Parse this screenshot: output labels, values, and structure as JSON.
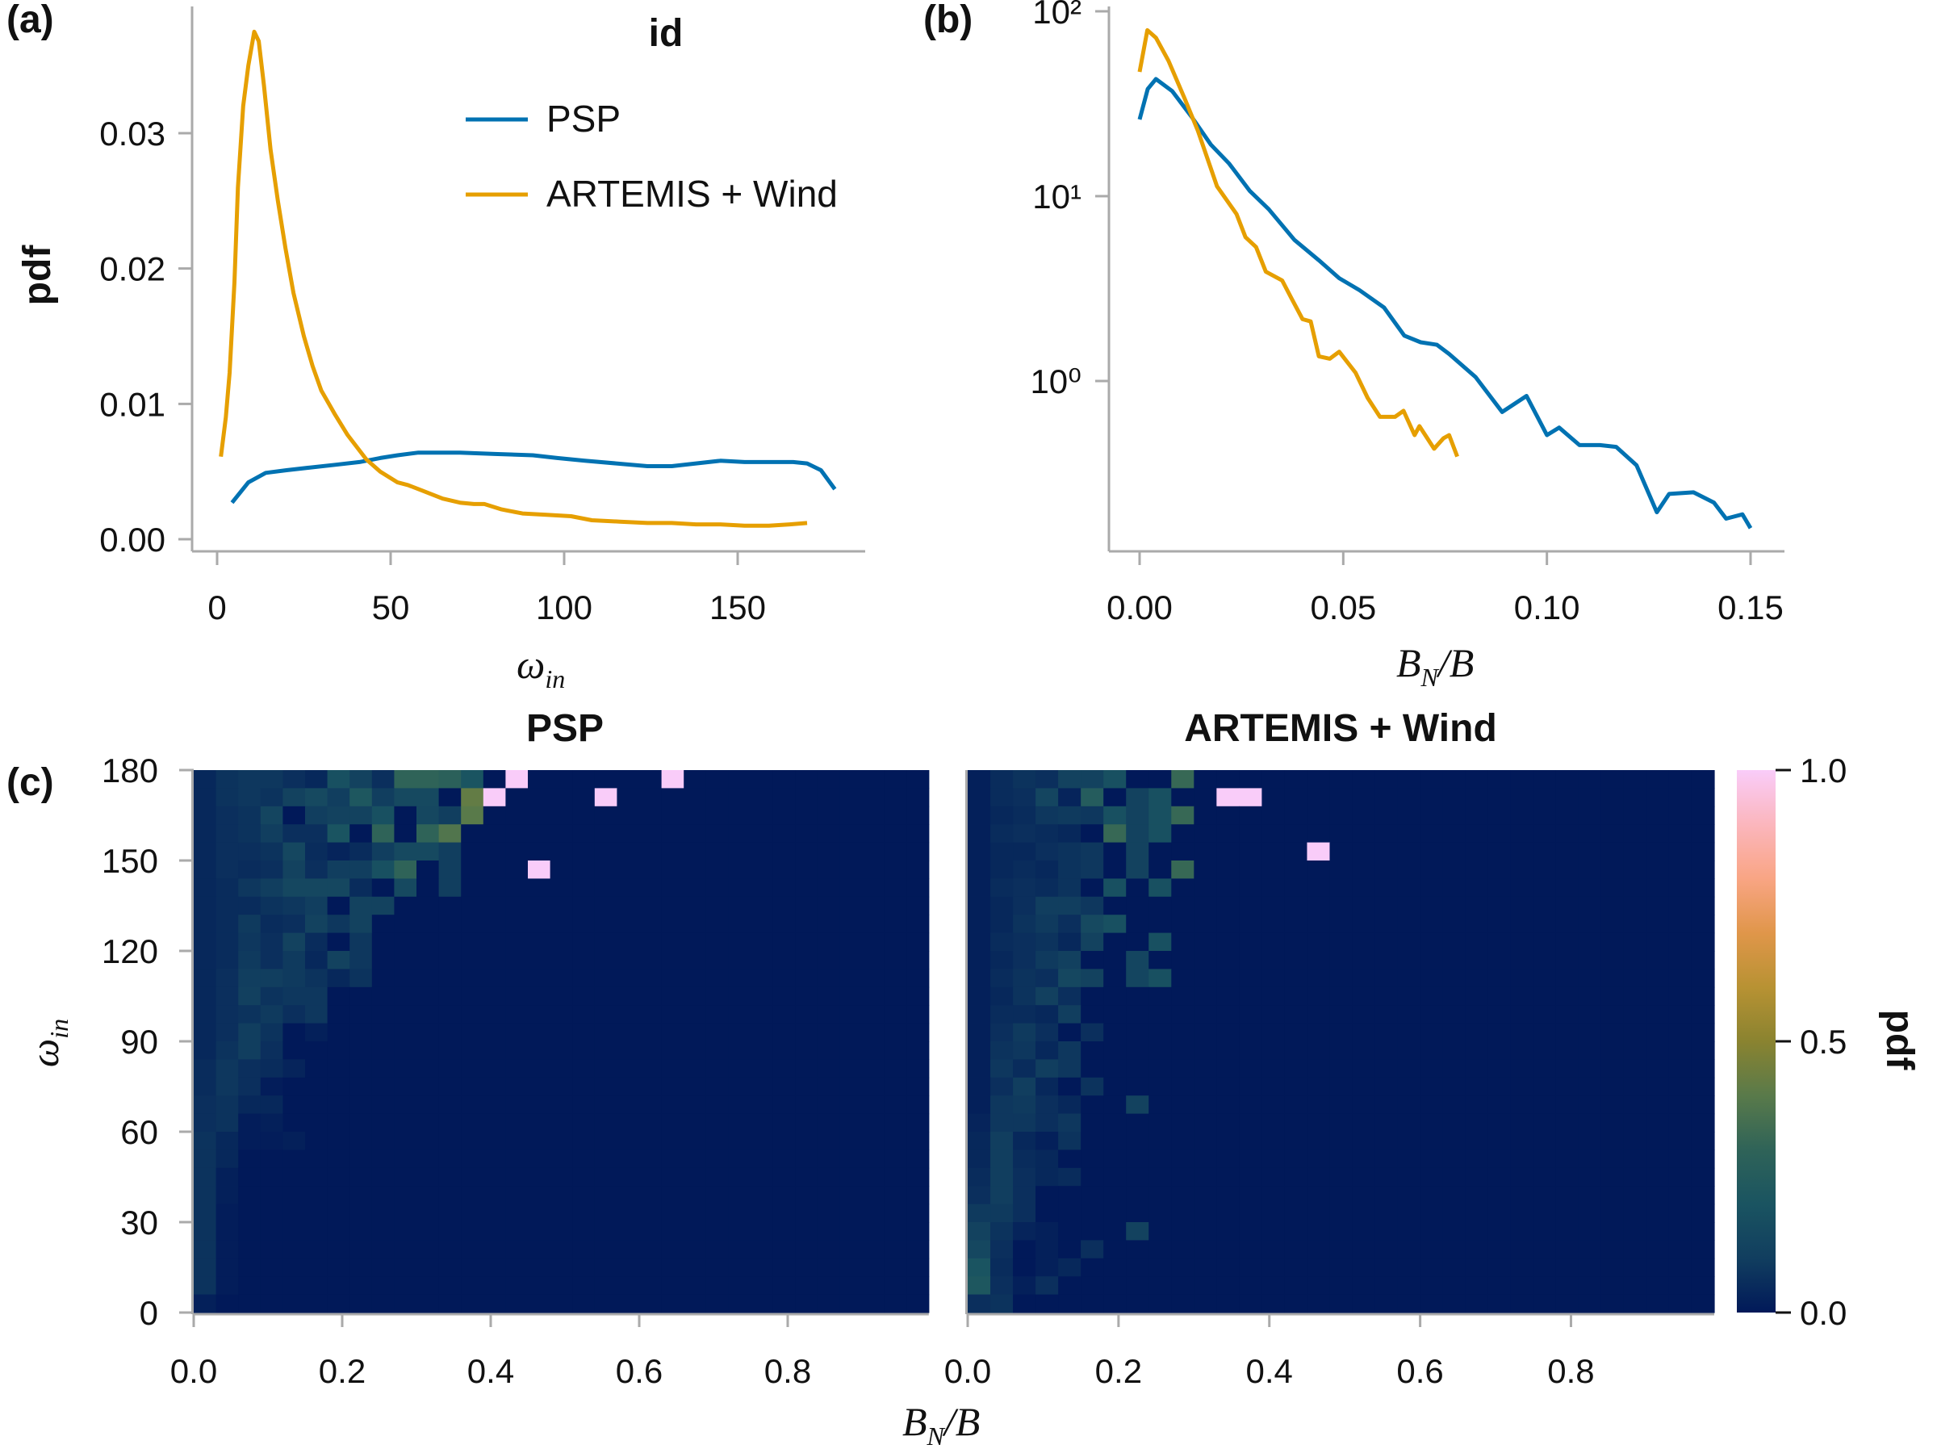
{
  "figure": {
    "panel_labels": [
      "(a)",
      "(b)",
      "(c)"
    ],
    "legend": {
      "title": "id",
      "entries": [
        "PSP",
        "ARTEMIS + Wind"
      ]
    },
    "colors": {
      "PSP": "#0072b2",
      "ARTEMIS + Wind": "#e69f00",
      "axis": "#aaaaaa"
    }
  },
  "chart_data": [
    {
      "id": "a",
      "type": "line",
      "xlabel": {
        "main": "ω",
        "sub": "in"
      },
      "ylabel": "pdf",
      "xlim": [
        -5,
        187
      ],
      "ylim": [
        -0.0009,
        0.0394
      ],
      "xticks": [
        0,
        50,
        100,
        150
      ],
      "xtick_labels": [
        "0",
        "50",
        "100",
        "150"
      ],
      "yticks": [
        0,
        0.01,
        0.02,
        0.03
      ],
      "ytick_labels": [
        "0.00",
        "0.01",
        "0.02",
        "0.03"
      ],
      "legend_position": "top-right",
      "grid": false,
      "series": [
        {
          "name": "PSP",
          "x": [
            4.3,
            9,
            14,
            20,
            27,
            34,
            41,
            47,
            52,
            58,
            63,
            70,
            80,
            91,
            98,
            106,
            115,
            124,
            131,
            138,
            145,
            152,
            160,
            166,
            170,
            174,
            178
          ],
          "y": [
            0.0027,
            0.0042,
            0.0049,
            0.0051,
            0.0053,
            0.0055,
            0.0057,
            0.006,
            0.0062,
            0.0064,
            0.0064,
            0.0064,
            0.0063,
            0.0062,
            0.006,
            0.0058,
            0.0056,
            0.0054,
            0.0054,
            0.0056,
            0.0058,
            0.0057,
            0.0057,
            0.0057,
            0.0056,
            0.0051,
            0.0037
          ]
        },
        {
          "name": "ARTEMIS + Wind",
          "x": [
            1.1,
            2.5,
            3.6,
            5,
            6,
            7.5,
            9,
            10.7,
            12,
            13.5,
            15.4,
            17.5,
            19.7,
            22,
            25,
            27.5,
            30,
            34,
            37.6,
            43,
            47,
            52,
            55,
            59,
            65,
            70,
            74,
            77,
            82,
            88,
            95,
            102,
            108,
            116,
            124,
            131,
            138,
            145,
            152,
            159,
            165,
            170
          ],
          "y": [
            0.0061,
            0.009,
            0.0123,
            0.019,
            0.026,
            0.032,
            0.035,
            0.0375,
            0.0368,
            0.0335,
            0.0288,
            0.025,
            0.0215,
            0.0182,
            0.015,
            0.0128,
            0.011,
            0.0092,
            0.0077,
            0.0059,
            0.005,
            0.0042,
            0.004,
            0.0036,
            0.003,
            0.0027,
            0.0026,
            0.0026,
            0.0022,
            0.0019,
            0.0018,
            0.0017,
            0.0014,
            0.0013,
            0.0012,
            0.0012,
            0.0011,
            0.0011,
            0.001,
            0.001,
            0.0011,
            0.0012
          ]
        }
      ]
    },
    {
      "id": "b",
      "type": "line",
      "xlabel": {
        "main": "B",
        "sub": "N",
        "rest": "/B"
      },
      "ylabel": "",
      "yscale": "log",
      "xlim": [
        -0.0075,
        0.158
      ],
      "ylim": [
        0.12,
        105
      ],
      "xticks": [
        0,
        0.05,
        0.1,
        0.15
      ],
      "xtick_labels": [
        "0.00",
        "0.05",
        "0.10",
        "0.15"
      ],
      "yticks": [
        1,
        10,
        100
      ],
      "ytick_labels": [
        "10⁰",
        "10¹",
        "10²"
      ],
      "grid": false,
      "series": [
        {
          "name": "PSP",
          "x": [
            0,
            0.002,
            0.004,
            0.008,
            0.0127,
            0.0175,
            0.022,
            0.027,
            0.0317,
            0.038,
            0.044,
            0.049,
            0.054,
            0.06,
            0.065,
            0.069,
            0.073,
            0.076,
            0.0825,
            0.089,
            0.095,
            0.1,
            0.103,
            0.108,
            0.113,
            0.117,
            0.122,
            0.127,
            0.13,
            0.136,
            0.141,
            0.144,
            0.148,
            0.15
          ],
          "y": [
            26,
            38,
            43,
            37,
            27,
            19,
            15,
            10.7,
            8.5,
            5.8,
            4.5,
            3.6,
            3.1,
            2.5,
            1.76,
            1.62,
            1.57,
            1.4,
            1.05,
            0.68,
            0.83,
            0.51,
            0.56,
            0.45,
            0.45,
            0.44,
            0.35,
            0.195,
            0.245,
            0.25,
            0.22,
            0.18,
            0.19,
            0.16
          ]
        },
        {
          "name": "ARTEMIS + Wind",
          "x": [
            0,
            0.0019,
            0.004,
            0.0071,
            0.011,
            0.0143,
            0.019,
            0.0238,
            0.026,
            0.0286,
            0.031,
            0.035,
            0.0373,
            0.04,
            0.042,
            0.044,
            0.0467,
            0.049,
            0.053,
            0.056,
            0.059,
            0.0627,
            0.0648,
            0.0675,
            0.0687,
            0.0723,
            0.0746,
            0.076,
            0.078
          ],
          "y": [
            47,
            79,
            72,
            54,
            34,
            22.6,
            11.3,
            8,
            6,
            5.3,
            3.9,
            3.5,
            2.8,
            2.16,
            2.1,
            1.36,
            1.32,
            1.44,
            1.11,
            0.81,
            0.64,
            0.64,
            0.69,
            0.51,
            0.57,
            0.43,
            0.49,
            0.51,
            0.39
          ]
        }
      ]
    },
    {
      "id": "c-psp",
      "type": "heatmap",
      "title": "PSP",
      "xlabel": {
        "main": "B",
        "sub": "N",
        "rest": "/B"
      },
      "ylabel": {
        "main": "ω",
        "sub": "in"
      },
      "xlim": [
        0,
        0.99
      ],
      "ylim": [
        0,
        180
      ],
      "x_bin_width": 0.03,
      "y_bin_width": 6,
      "xticks": [
        0,
        0.2,
        0.4,
        0.6,
        0.8
      ],
      "xtick_labels": [
        "0.0",
        "0.2",
        "0.4",
        "0.6",
        "0.8"
      ],
      "yticks": [
        0,
        30,
        60,
        90,
        120,
        150,
        180
      ],
      "ytick_labels": [
        "0",
        "30",
        "60",
        "90",
        "120",
        "150",
        "180"
      ],
      "z_rows_from_top": [
        [
          0.04,
          0.07,
          0.08,
          0.08,
          0.06,
          0.04,
          0.18,
          0.12,
          0.06,
          0.3,
          0.3,
          0.28,
          0.2,
          0,
          1,
          0,
          0,
          0,
          0,
          0,
          0,
          1
        ],
        [
          0.04,
          0.07,
          0.08,
          0.07,
          0.12,
          0.15,
          0.1,
          0.22,
          0.1,
          0.15,
          0.15,
          0,
          0.42,
          1,
          0,
          0,
          0,
          0,
          1
        ],
        [
          0.04,
          0.06,
          0.07,
          0.13,
          0,
          0.1,
          0.12,
          0.12,
          0.18,
          0,
          0.14,
          0.1,
          0.4
        ],
        [
          0.04,
          0.06,
          0.07,
          0.1,
          0.06,
          0.06,
          0.2,
          0,
          0.3,
          0,
          0.3,
          0.38
        ],
        [
          0.04,
          0.06,
          0.06,
          0.07,
          0.14,
          0.05,
          0.03,
          0.05,
          0.1,
          0.15,
          0.15,
          0.1
        ],
        [
          0.04,
          0.06,
          0.05,
          0.06,
          0.12,
          0.06,
          0.1,
          0.1,
          0.18,
          0.3,
          0,
          0.1,
          0,
          0,
          0,
          1
        ],
        [
          0.04,
          0.05,
          0.08,
          0.1,
          0.14,
          0.14,
          0.14,
          0.05,
          0,
          0.15,
          0,
          0.1
        ],
        [
          0.04,
          0.05,
          0.05,
          0.07,
          0.08,
          0.1,
          0,
          0.12,
          0.12
        ],
        [
          0.04,
          0.05,
          0.09,
          0.05,
          0.06,
          0.12,
          0.08,
          0.12
        ],
        [
          0.04,
          0.05,
          0.08,
          0.06,
          0.12,
          0.05,
          0,
          0.08
        ],
        [
          0.04,
          0.05,
          0.09,
          0.06,
          0.09,
          0.04,
          0.12,
          0.08
        ],
        [
          0.04,
          0.06,
          0.1,
          0.1,
          0.09,
          0.07,
          0.04,
          0.07
        ],
        [
          0.04,
          0.06,
          0.11,
          0.07,
          0.08,
          0.08
        ],
        [
          0.04,
          0.06,
          0.07,
          0.09,
          0.06,
          0.08
        ],
        [
          0.04,
          0.06,
          0.1,
          0.07,
          0,
          0.02
        ],
        [
          0.04,
          0.07,
          0.1,
          0.06
        ],
        [
          0.05,
          0.08,
          0.06,
          0.05,
          0.03
        ],
        [
          0.05,
          0.08,
          0.06,
          0.01
        ],
        [
          0.06,
          0.07,
          0.04,
          0.04
        ],
        [
          0.06,
          0.07,
          0.01,
          0.02
        ],
        [
          0.07,
          0.04,
          0.01,
          0.01,
          0.02
        ],
        [
          0.07,
          0.04
        ],
        [
          0.07,
          0.02
        ],
        [
          0.07,
          0.02
        ],
        [
          0.07,
          0.01
        ],
        [
          0.07,
          0.01
        ],
        [
          0.07,
          0.01
        ],
        [
          0.07,
          0.01
        ],
        [
          0.07,
          0.01
        ],
        [
          0.02
        ]
      ]
    },
    {
      "id": "c-artemis",
      "type": "heatmap",
      "title": "ARTEMIS + Wind",
      "xlim": [
        0,
        0.99
      ],
      "ylim": [
        0,
        180
      ],
      "x_bin_width": 0.03,
      "y_bin_width": 6,
      "xticks": [
        0,
        0.2,
        0.4,
        0.6,
        0.8
      ],
      "xtick_labels": [
        "0.0",
        "0.2",
        "0.4",
        "0.6",
        "0.8"
      ],
      "z_rows_from_top": [
        [
          0.02,
          0.05,
          0.07,
          0.06,
          0.12,
          0.12,
          0.18,
          0,
          0,
          0.32
        ],
        [
          0.02,
          0.05,
          0.06,
          0.13,
          0.03,
          0.25,
          0,
          0.12,
          0.18,
          0,
          0,
          1,
          1
        ],
        [
          0.02,
          0.04,
          0.05,
          0.08,
          0.09,
          0.08,
          0.18,
          0.12,
          0.18,
          0.32
        ],
        [
          0.02,
          0.05,
          0.06,
          0.05,
          0.04,
          0,
          0.32,
          0.12,
          0.18
        ],
        [
          0.02,
          0.04,
          0.04,
          0.06,
          0.07,
          0.08,
          0,
          0.12,
          0,
          0,
          0,
          0,
          0,
          0,
          0,
          1
        ],
        [
          0.02,
          0.04,
          0.05,
          0.04,
          0.07,
          0.08,
          0,
          0.12,
          0,
          0.32
        ],
        [
          0.02,
          0.05,
          0.06,
          0.05,
          0.07,
          0,
          0.18,
          0,
          0.18
        ],
        [
          0.02,
          0.04,
          0.06,
          0.1,
          0.1,
          0.08
        ],
        [
          0.02,
          0.04,
          0.07,
          0.09,
          0.06,
          0.15,
          0.18
        ],
        [
          0.02,
          0.05,
          0.06,
          0.07,
          0.04,
          0.12,
          0,
          0,
          0.18
        ],
        [
          0.02,
          0.04,
          0.06,
          0.09,
          0.11,
          0,
          0,
          0.13
        ],
        [
          0.02,
          0.05,
          0.07,
          0.06,
          0.14,
          0.12,
          0,
          0.13,
          0.18
        ],
        [
          0.02,
          0.04,
          0.07,
          0.11,
          0.06
        ],
        [
          0.02,
          0.05,
          0.05,
          0.04,
          0.1
        ],
        [
          0.02,
          0.06,
          0.09,
          0.06,
          0,
          0.06
        ],
        [
          0.02,
          0.07,
          0.08,
          0.04,
          0.08
        ],
        [
          0.02,
          0.08,
          0.05,
          0.1,
          0.08
        ],
        [
          0.02,
          0.06,
          0.1,
          0.04,
          0,
          0.07
        ],
        [
          0.02,
          0.08,
          0.09,
          0.06,
          0.04,
          0,
          0,
          0.12
        ],
        [
          0.03,
          0.08,
          0.08,
          0.06,
          0.08
        ],
        [
          0.04,
          0.1,
          0.04,
          0.02,
          0.07
        ],
        [
          0.04,
          0.1,
          0.05,
          0.04
        ],
        [
          0.05,
          0.1,
          0.06,
          0.04,
          0.05
        ],
        [
          0.06,
          0.1,
          0.06
        ],
        [
          0.09,
          0.09,
          0.06
        ],
        [
          0.12,
          0.07,
          0.03,
          0.02,
          0,
          0,
          0,
          0.12
        ],
        [
          0.14,
          0.06,
          0,
          0.02,
          0,
          0.06
        ],
        [
          0.2,
          0.05,
          0,
          0.02,
          0.04
        ],
        [
          0.22,
          0.06,
          0.02,
          0.06
        ],
        [
          0.06,
          0.07
        ]
      ]
    },
    {
      "id": "c-colorbar",
      "type": "colorbar",
      "label": "pdf",
      "range": [
        0,
        1
      ],
      "ticks": [
        0,
        0.5,
        1
      ],
      "tick_labels": [
        "0.0",
        "0.5",
        "1.0"
      ],
      "colormap_stops": [
        "#011959",
        "#113e5f",
        "#1a5461",
        "#2f6358",
        "#597a4a",
        "#8a8330",
        "#b89233",
        "#e0964a",
        "#f9a584",
        "#fbb6bd",
        "#f9ccf9"
      ]
    }
  ]
}
